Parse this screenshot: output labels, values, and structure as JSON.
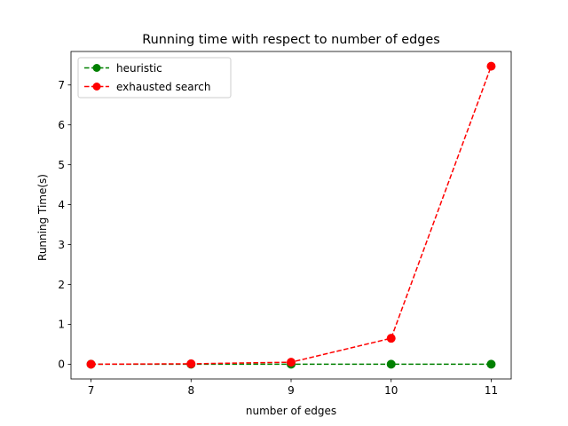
{
  "chart_data": {
    "type": "line",
    "title": "Running time with respect to number of edges",
    "xlabel": "number of edges",
    "ylabel": "Running Time(s)",
    "x": [
      7,
      8,
      9,
      10,
      11
    ],
    "xlim": [
      6.8,
      11.2
    ],
    "ylim": [
      -0.37,
      7.84
    ],
    "xticks": [
      "7",
      "8",
      "9",
      "10",
      "11"
    ],
    "yticks": [
      "0",
      "1",
      "2",
      "3",
      "4",
      "5",
      "6",
      "7"
    ],
    "grid": false,
    "legend_position": "upper-left",
    "series": [
      {
        "name": "heuristic",
        "color": "#008000",
        "line_style": "dashed",
        "marker": "circle",
        "values": [
          0.0,
          0.0,
          0.0,
          0.0,
          0.0
        ]
      },
      {
        "name": "exhausted search",
        "color": "#ff0000",
        "line_style": "dashed",
        "marker": "circle",
        "values": [
          0.0,
          0.01,
          0.05,
          0.65,
          7.47
        ]
      }
    ]
  }
}
